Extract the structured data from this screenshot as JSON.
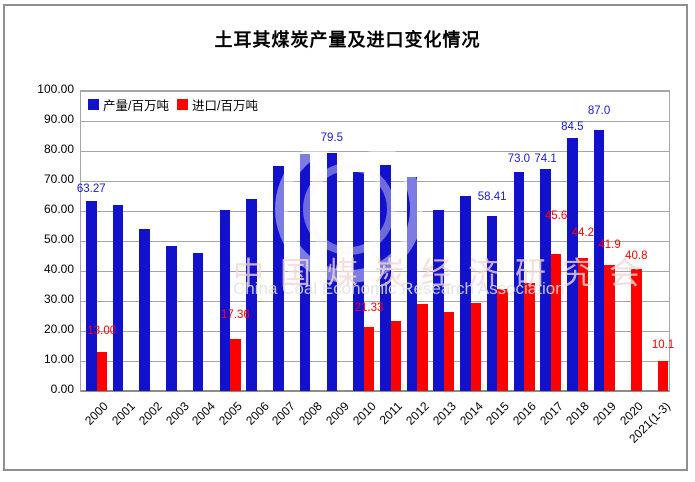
{
  "title": "土耳其煤炭产量及进口变化情况",
  "legend": {
    "items": [
      {
        "label": "产量/百万吨",
        "color": "#1212cc"
      },
      {
        "label": "进口/百万吨",
        "color": "#ff0000"
      }
    ]
  },
  "watermark": {
    "cn": "中国煤炭经济研究会",
    "en": "China Coal Economic Research Association"
  },
  "colors": {
    "production_bar": "#1212cc",
    "import_bar": "#ff0000",
    "production_label": "#1a1ad2",
    "import_label": "#ff0000",
    "gridline": "#a6a6a6"
  },
  "chart_data": {
    "type": "bar",
    "title": "土耳其煤炭产量及进口变化情况",
    "categories": [
      "2000",
      "2001",
      "2002",
      "2003",
      "2004",
      "2005",
      "2006",
      "2007",
      "2008",
      "2009",
      "2010",
      "2011",
      "2012",
      "2013",
      "2014",
      "2015",
      "2016",
      "2017",
      "2018",
      "2019",
      "2020",
      "2021(1-3)"
    ],
    "series": [
      {
        "name": "产量/百万吨",
        "color": "#1212cc",
        "values": [
          63.27,
          62.0,
          54.0,
          48.5,
          46.0,
          60.5,
          64.0,
          75.0,
          79.0,
          79.5,
          73.0,
          75.5,
          71.5,
          60.5,
          65.0,
          58.41,
          73.0,
          74.1,
          84.5,
          87.0,
          null,
          null
        ],
        "point_labels": {
          "0": {
            "text": "63.27",
            "dy": 4
          },
          "9": {
            "text": "79.5",
            "dy": 7
          },
          "15": {
            "text": "58.41",
            "dy": 11
          },
          "16": {
            "text": "73.0",
            "dy": 5
          },
          "17": {
            "text": "74.1",
            "dy": 2
          },
          "18": {
            "text": "84.5",
            "dy": 3
          },
          "19": {
            "text": "87.0",
            "dy": 11
          }
        }
      },
      {
        "name": "进口/百万吨",
        "color": "#ff0000",
        "values": [
          13.0,
          null,
          null,
          null,
          null,
          17.36,
          null,
          null,
          null,
          null,
          21.33,
          23.5,
          29.0,
          26.5,
          29.5,
          34.0,
          36.0,
          45.6,
          44.2,
          41.9,
          40.8,
          10.1
        ],
        "point_labels": {
          "0": {
            "text": "13.00",
            "dy": 13
          },
          "5": {
            "text": "17.36",
            "dy": 16
          },
          "10": {
            "text": "21.33",
            "dy": 11
          },
          "17": {
            "text": "45.6",
            "dy": 30
          },
          "18": {
            "text": "44.2",
            "dy": 17
          },
          "19": {
            "text": "41.9",
            "dy": 12
          },
          "20": {
            "text": "40.8",
            "dy": 5
          },
          "21": {
            "text": "10.1",
            "dy": 8
          }
        }
      }
    ],
    "ylabel": "",
    "xlabel": "",
    "ylim": [
      0,
      100
    ],
    "ytick_step": 10,
    "ytick_labels": [
      "100.00",
      "90.00",
      "80.00",
      "70.00",
      "60.00",
      "50.00",
      "40.00",
      "30.00",
      "20.00",
      "10.00",
      "0.00"
    ],
    "grid": true,
    "legend_position": "top-left"
  }
}
